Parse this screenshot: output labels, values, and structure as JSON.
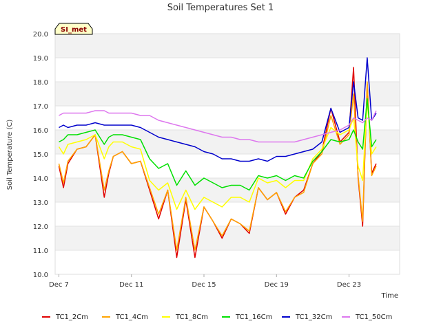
{
  "chart_data": {
    "type": "line",
    "title": "Soil Temperatures Set 1",
    "xlabel": "Time",
    "ylabel": "Soil Temperature (C)",
    "badge": "SI_met",
    "ylim": [
      10.0,
      20.0
    ],
    "yticks": [
      "10.0",
      "11.0",
      "12.0",
      "13.0",
      "14.0",
      "15.0",
      "16.0",
      "17.0",
      "18.0",
      "19.0",
      "20.0"
    ],
    "xlim": [
      "2023-12-06T19:00",
      "2023-12-25T19:00"
    ],
    "xticks": [
      {
        "label": "Dec 7",
        "date": "2023-12-07"
      },
      {
        "label": "Dec 11",
        "date": "2023-12-11"
      },
      {
        "label": "Dec 15",
        "date": "2023-12-15"
      },
      {
        "label": "Dec 19",
        "date": "2023-12-19"
      },
      {
        "label": "Dec 23",
        "date": "2023-12-23"
      }
    ],
    "grid": true,
    "legend_position": "bottom",
    "x": [
      "2023-12-07T00:00",
      "2023-12-07T06:00",
      "2023-12-07T12:00",
      "2023-12-08T00:00",
      "2023-12-08T12:00",
      "2023-12-09T00:00",
      "2023-12-09T12:00",
      "2023-12-09T18:00",
      "2023-12-10T00:00",
      "2023-12-10T12:00",
      "2023-12-11T00:00",
      "2023-12-11T12:00",
      "2023-12-12T00:00",
      "2023-12-12T12:00",
      "2023-12-13T00:00",
      "2023-12-13T12:00",
      "2023-12-14T00:00",
      "2023-12-14T12:00",
      "2023-12-15T00:00",
      "2023-12-15T12:00",
      "2023-12-16T00:00",
      "2023-12-16T12:00",
      "2023-12-17T00:00",
      "2023-12-17T12:00",
      "2023-12-18T00:00",
      "2023-12-18T12:00",
      "2023-12-19T00:00",
      "2023-12-19T12:00",
      "2023-12-20T00:00",
      "2023-12-20T12:00",
      "2023-12-21T00:00",
      "2023-12-21T12:00",
      "2023-12-22T00:00",
      "2023-12-22T12:00",
      "2023-12-23T00:00",
      "2023-12-23T06:00",
      "2023-12-23T12:00",
      "2023-12-23T18:00",
      "2023-12-24T00:00",
      "2023-12-24T06:00",
      "2023-12-24T12:00",
      "2023-12-24T18:00",
      "2023-12-25T00:00",
      "2023-12-25T06:00"
    ],
    "series": [
      {
        "name": "TC1_2Cm",
        "color": "#e00000",
        "values": [
          14.5,
          13.6,
          14.6,
          15.2,
          15.3,
          15.8,
          13.2,
          14.2,
          14.9,
          15.1,
          14.6,
          14.7,
          13.5,
          12.3,
          13.5,
          10.7,
          13.1,
          10.7,
          12.8,
          12.2,
          11.5,
          12.3,
          12.1,
          11.7,
          13.6,
          13.1,
          13.4,
          12.5,
          13.2,
          13.5,
          14.6,
          15.1,
          16.9,
          15.5,
          15.9,
          18.6,
          14.0,
          12.0,
          17.9,
          14.2,
          14.6,
          null,
          null,
          null
        ]
      },
      {
        "name": "TC1_4Cm",
        "color": "#ffa500",
        "values": [
          14.6,
          13.8,
          14.7,
          15.2,
          15.3,
          15.8,
          13.5,
          14.3,
          14.9,
          15.1,
          14.6,
          14.7,
          13.6,
          12.5,
          13.5,
          11.0,
          13.2,
          11.0,
          12.8,
          12.2,
          11.6,
          12.3,
          12.1,
          11.8,
          13.6,
          13.1,
          13.4,
          12.6,
          13.2,
          13.4,
          14.6,
          15.0,
          16.6,
          15.4,
          15.8,
          17.5,
          14.1,
          12.2,
          18.0,
          14.1,
          14.5,
          null,
          null,
          null
        ]
      },
      {
        "name": "TC1_8Cm",
        "color": "#ffff00",
        "values": [
          15.3,
          15.0,
          15.4,
          15.5,
          15.6,
          15.8,
          14.8,
          15.3,
          15.5,
          15.5,
          15.3,
          15.2,
          13.9,
          13.5,
          13.8,
          12.7,
          13.5,
          12.7,
          13.2,
          13.0,
          12.8,
          13.2,
          13.2,
          13.0,
          14.0,
          13.8,
          13.9,
          13.6,
          13.9,
          13.9,
          14.8,
          15.2,
          16.1,
          15.8,
          16.0,
          16.5,
          14.5,
          13.9,
          17.2,
          15.0,
          15.3,
          null,
          null,
          null
        ]
      },
      {
        "name": "TC1_16Cm",
        "color": "#00e000",
        "values": [
          15.5,
          15.6,
          15.8,
          15.8,
          15.9,
          16.0,
          15.4,
          15.7,
          15.8,
          15.8,
          15.7,
          15.6,
          14.8,
          14.4,
          14.6,
          13.7,
          14.3,
          13.7,
          14.0,
          13.8,
          13.6,
          13.7,
          13.7,
          13.5,
          14.1,
          14.0,
          14.1,
          13.9,
          14.1,
          14.0,
          14.7,
          15.1,
          15.6,
          15.5,
          15.6,
          16.0,
          15.5,
          15.2,
          17.3,
          15.3,
          15.6,
          null,
          null,
          null
        ]
      },
      {
        "name": "TC1_32Cm",
        "color": "#0000cc",
        "values": [
          16.1,
          16.2,
          16.1,
          16.2,
          16.2,
          16.3,
          16.2,
          16.2,
          16.2,
          16.2,
          16.2,
          16.1,
          15.9,
          15.7,
          15.6,
          15.5,
          15.4,
          15.3,
          15.1,
          15.0,
          14.8,
          14.8,
          14.7,
          14.7,
          14.8,
          14.7,
          14.9,
          14.9,
          15.0,
          15.1,
          15.2,
          15.5,
          16.9,
          15.9,
          16.1,
          18.0,
          16.5,
          16.4,
          19.0,
          16.4,
          16.7,
          null,
          null,
          null
        ]
      },
      {
        "name": "TC1_50Cm",
        "color": "#dd77ee",
        "values": [
          16.6,
          16.7,
          16.7,
          16.7,
          16.7,
          16.8,
          16.8,
          16.7,
          16.7,
          16.7,
          16.7,
          16.6,
          16.6,
          16.4,
          16.3,
          16.2,
          16.1,
          16.0,
          15.9,
          15.8,
          15.7,
          15.7,
          15.6,
          15.6,
          15.5,
          15.5,
          15.5,
          15.5,
          15.5,
          15.6,
          15.7,
          15.8,
          15.9,
          16.0,
          16.2,
          16.5,
          16.4,
          16.3,
          16.5,
          16.4,
          16.8,
          null,
          null,
          null
        ]
      }
    ]
  }
}
